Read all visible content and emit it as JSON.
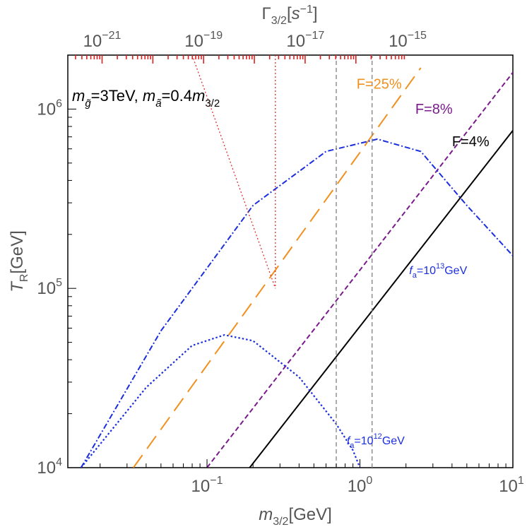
{
  "chart_data": {
    "type": "line",
    "x_scale": "log",
    "y_scale": "log",
    "xlim": [
      0.0123,
      10
    ],
    "ylim": [
      10000,
      2000000
    ],
    "grid": false,
    "xlabel": {
      "main": "m",
      "sub": "3/2",
      "unit": "[GeV]"
    },
    "ylabel": {
      "main": "T",
      "sub": "R",
      "unit": "[GeV]"
    },
    "top_axis_label": {
      "main": "Γ",
      "sub": "3/2",
      "unit_pre": "[",
      "unit_var": "s",
      "unit_sup": "−1",
      "unit_post": "]"
    },
    "x_ticks": [
      {
        "value": 0.1,
        "base": "10",
        "exp": "−1"
      },
      {
        "value": 1,
        "base": "10",
        "exp": "0"
      },
      {
        "value": 10,
        "base": "10",
        "exp": "1"
      }
    ],
    "y_ticks": [
      {
        "value": 10000,
        "base": "10",
        "exp": "4"
      },
      {
        "value": 100000,
        "base": "10",
        "exp": "5"
      },
      {
        "value": 1000000,
        "base": "10",
        "exp": "6"
      }
    ],
    "top_ticks": [
      {
        "value": 0.0206,
        "base": "10",
        "exp": "−21"
      },
      {
        "value": 0.095,
        "base": "10",
        "exp": "−19"
      },
      {
        "value": 0.44,
        "base": "10",
        "exp": "−17"
      },
      {
        "value": 2.05,
        "base": "10",
        "exp": "−15"
      }
    ],
    "title_annotation": {
      "t1": "m",
      "t1_sub": "g̃",
      "t2": "=3TeV, ",
      "t3": "m",
      "t3_sub": "ã",
      "t4": "=0.4",
      "t5": "m",
      "t5_sub": "3/2"
    },
    "series": [
      {
        "label": "F=4%",
        "color": "#000000",
        "style": "solid",
        "points": [
          [
            0.19,
            10000
          ],
          [
            10,
            760000
          ]
        ]
      },
      {
        "label": "F=8%",
        "color": "#7a1a8c",
        "style": "dashed",
        "points": [
          [
            0.1,
            10000
          ],
          [
            10,
            1600000
          ]
        ]
      },
      {
        "label": "F=25%",
        "color": "#f0901e",
        "style": "longdash",
        "points": [
          [
            0.033,
            10000
          ],
          [
            2.5,
            1700000
          ]
        ]
      },
      {
        "label": "f_a=10^13 GeV",
        "color": "#1a2ee0",
        "style": "dashdot",
        "points": [
          [
            0.015,
            10000
          ],
          [
            0.05,
            58000
          ],
          [
            0.2,
            290000
          ],
          [
            0.6,
            580000
          ],
          [
            1.3,
            680000
          ],
          [
            2.5,
            580000
          ],
          [
            5,
            290000
          ],
          [
            10,
            152000
          ]
        ]
      },
      {
        "label": "f_a=10^12 GeV",
        "color": "#1a2ee0",
        "style": "dotted",
        "points": [
          [
            0.015,
            10000
          ],
          [
            0.04,
            28000
          ],
          [
            0.08,
            48000
          ],
          [
            0.13,
            55000
          ],
          [
            0.2,
            51000
          ],
          [
            0.4,
            32000
          ],
          [
            0.7,
            17500
          ],
          [
            0.9,
            12500
          ],
          [
            1.0,
            10000
          ]
        ]
      },
      {
        "label": "red-dotted-upper",
        "color": "#e02020",
        "style": "reddot",
        "points": [
          [
            0.08,
            2000000
          ],
          [
            0.28,
            100000
          ]
        ]
      },
      {
        "label": "red-dotted-vertical",
        "color": "#e02020",
        "style": "reddot",
        "points": [
          [
            0.28,
            2000000
          ],
          [
            0.28,
            100000
          ]
        ]
      },
      {
        "label": "gray-vertical-1",
        "color": "#808080",
        "style": "graydash",
        "points": [
          [
            0.7,
            10000
          ],
          [
            0.7,
            2000000
          ]
        ]
      },
      {
        "label": "gray-vertical-2",
        "color": "#808080",
        "style": "graydash",
        "points": [
          [
            1.2,
            10000
          ],
          [
            1.2,
            2000000
          ]
        ]
      }
    ],
    "annotations": [
      {
        "name": "label-f25",
        "text": "F=25%",
        "color": "#f0901e",
        "x": 0.95,
        "y": 1300000
      },
      {
        "name": "label-f8",
        "text": "F=8%",
        "color": "#7a1a8c",
        "x": 2.3,
        "y": 940000
      },
      {
        "name": "label-f4",
        "text": "F=4%",
        "color": "#000000",
        "x": 4.0,
        "y": 620000
      }
    ],
    "fa13_label": {
      "f": "f",
      "sub": "a",
      "eq": "=10",
      "sup": "13",
      "unit": "GeV",
      "x": 2.1,
      "y": 120000
    },
    "fa12_label": {
      "f": "f",
      "sub": "a",
      "eq": "=10",
      "sup": "12",
      "unit": "GeV",
      "x": 0.82,
      "y": 13500
    }
  }
}
